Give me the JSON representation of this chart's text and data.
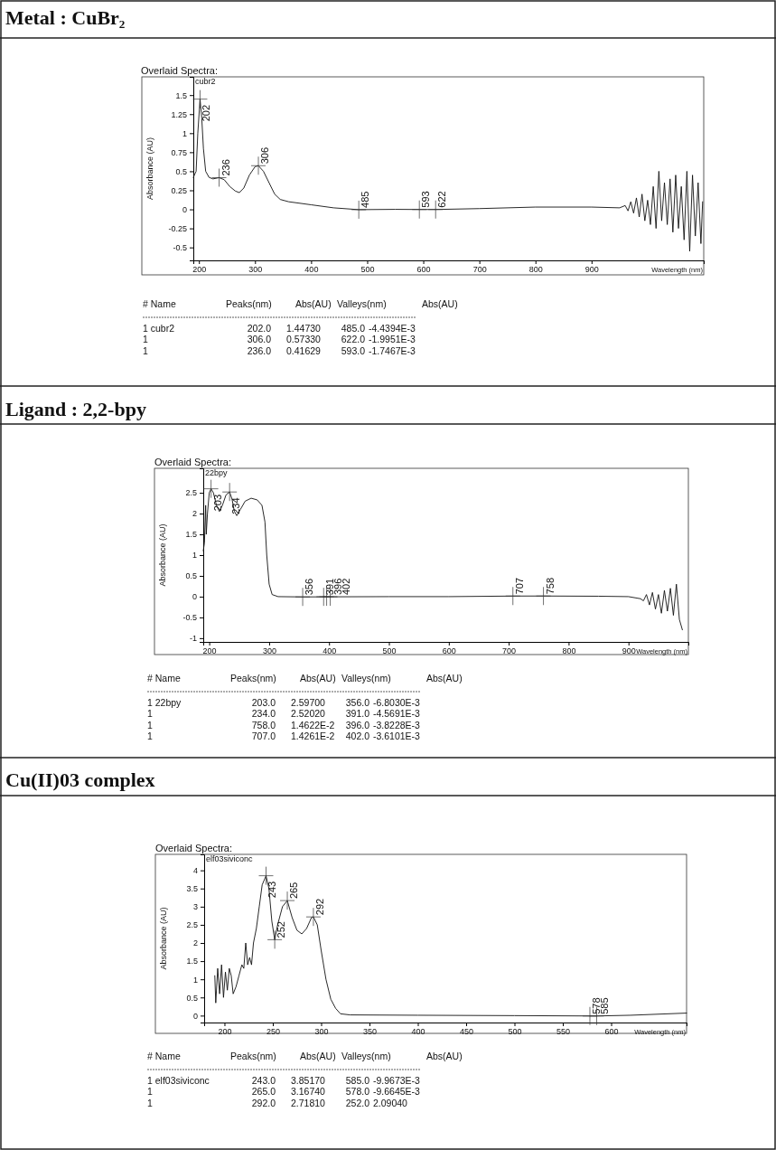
{
  "chart_data": [
    {
      "type": "line",
      "title": "Metal : CuBr₂",
      "subtitle": "Overlaid Spectra:",
      "xlabel": "Wavelength (nm)",
      "ylabel": "Absorbance (AU)",
      "legend": "top left",
      "grid": false,
      "xlim": [
        190,
        1100
      ],
      "ylim": [
        -0.67,
        1.74
      ],
      "xticks": [
        200,
        300,
        400,
        500,
        600,
        700,
        800,
        900
      ],
      "yticks": [
        -0.5,
        -0.25,
        0,
        0.25,
        0.5,
        0.75,
        1,
        1.25,
        1.5
      ],
      "series": [
        {
          "name": "cubr2",
          "color": "#111111",
          "x": [
            190,
            195,
            198,
            202,
            205,
            208,
            212,
            218,
            225,
            236,
            245,
            255,
            265,
            272,
            280,
            290,
            300,
            306,
            315,
            325,
            335,
            345,
            360,
            400,
            440,
            485,
            550,
            593,
            622,
            700,
            800,
            900,
            950,
            960,
            965,
            970,
            975,
            980,
            985,
            990,
            995,
            1000,
            1005,
            1010,
            1015,
            1020,
            1025,
            1030,
            1035,
            1040,
            1045,
            1050,
            1055,
            1060,
            1065,
            1070,
            1075,
            1080,
            1085,
            1090,
            1095,
            1098
          ],
          "values": [
            0.42,
            0.5,
            1.0,
            1.447,
            1.2,
            0.8,
            0.5,
            0.42,
            0.4,
            0.416,
            0.39,
            0.3,
            0.24,
            0.22,
            0.28,
            0.45,
            0.56,
            0.573,
            0.5,
            0.35,
            0.2,
            0.13,
            0.1,
            0.06,
            0.02,
            -0.004,
            0,
            -0.002,
            -0.002,
            0.01,
            0.03,
            0.03,
            0.02,
            0.05,
            -0.02,
            0.1,
            -0.05,
            0.15,
            -0.1,
            0.2,
            -0.15,
            0.12,
            -0.2,
            0.3,
            -0.25,
            0.5,
            -0.15,
            0.35,
            -0.2,
            0.4,
            -0.3,
            0.45,
            -0.25,
            0.3,
            -0.4,
            0.5,
            -0.55,
            0.45,
            -0.35,
            0.35,
            -0.45,
            0.1
          ]
        }
      ],
      "annotations": [
        {
          "text": "202",
          "x": 202,
          "y": 1.4473
        },
        {
          "text": "236",
          "x": 236,
          "y": 0.41629
        },
        {
          "text": "306",
          "x": 306,
          "y": 0.5733
        },
        {
          "text": "485",
          "x": 485,
          "y": -0.0044394
        },
        {
          "text": "593",
          "x": 593,
          "y": -0.0017467
        },
        {
          "text": "622",
          "x": 622,
          "y": -0.0019951
        },
        "# Name\tPeaks(nm)\tAbs(AU)\tValleys(nm)\tAbs(AU)",
        "1 cubr2\t202.0\t1.44730\t485.0\t-4.4394E-3",
        "1\t306.0\t0.57330\t622.0\t-1.9951E-3",
        "1\t236.0\t0.41629\t593.0\t-1.7467E-3"
      ]
    },
    {
      "type": "line",
      "title": "Ligand : 2,2-bpy",
      "subtitle": "Overlaid Spectra:",
      "xlabel": "Wavelength (nm)",
      "ylabel": "Absorbance (AU)",
      "legend": "top left",
      "grid": false,
      "xlim": [
        190,
        1000
      ],
      "ylim": [
        -1.09,
        3.09
      ],
      "xticks": [
        200,
        300,
        400,
        500,
        600,
        700,
        800,
        900
      ],
      "yticks": [
        -1,
        -0.5,
        0,
        0.5,
        1,
        1.5,
        2,
        2.5
      ],
      "series": [
        {
          "name": "22bpy",
          "color": "#111111",
          "x": [
            190,
            192,
            194,
            195,
            197,
            200,
            203,
            207,
            212,
            217,
            222,
            228,
            234,
            238,
            242,
            246,
            252,
            260,
            270,
            280,
            288,
            293,
            296,
            300,
            305,
            315,
            356,
            391,
            400,
            500,
            600,
            707,
            758,
            850,
            900,
            920,
            925,
            930,
            935,
            940,
            945,
            950,
            955,
            960,
            965,
            970,
            975,
            980,
            985,
            990
          ],
          "values": [
            1.1,
            1.3,
            2.2,
            1.5,
            2.0,
            2.5,
            2.597,
            2.5,
            2.2,
            2.05,
            2.2,
            2.45,
            2.5202,
            2.35,
            2.05,
            1.95,
            2.1,
            2.3,
            2.37,
            2.33,
            2.2,
            1.8,
            1.0,
            0.3,
            0.05,
            0,
            -0.0068,
            -0.0046,
            -0.004,
            0,
            0,
            0.014,
            0.015,
            0.01,
            0,
            -0.05,
            -0.1,
            0.05,
            -0.2,
            0.1,
            -0.3,
            0.05,
            -0.4,
            0.15,
            -0.35,
            0.2,
            -0.45,
            0.3,
            -0.55,
            -0.8
          ]
        }
      ],
      "annotations": [
        {
          "text": "203",
          "x": 203,
          "y": 2.597
        },
        {
          "text": "234",
          "x": 234,
          "y": 2.5202
        },
        {
          "text": "356",
          "x": 356,
          "y": -0.006803
        },
        {
          "text": "391",
          "x": 391,
          "y": -0.0045691
        },
        {
          "text": "396",
          "x": 396,
          "y": -0.0038228
        },
        {
          "text": "402",
          "x": 402,
          "y": -0.0036101
        },
        {
          "text": "707",
          "x": 707,
          "y": 0.014261
        },
        {
          "text": "758",
          "x": 758,
          "y": 0.014622
        },
        "# Name\tPeaks(nm)\tAbs(AU)\tValleys(nm)\tAbs(AU)",
        "1 22bpy\t203.0\t2.59700\t356.0\t-6.8030E-3",
        "1\t234.0\t2.52020\t391.0\t-4.5691E-3",
        "1\t758.0\t1.4622E-2\t396.0\t-3.8228E-3",
        "1\t707.0\t1.4261E-2\t402.0\t-3.6101E-3"
      ]
    },
    {
      "type": "line",
      "title": "Cu(II)03 complex",
      "subtitle": "Overlaid Spectra:",
      "xlabel": "Wavelength (nm)",
      "ylabel": "Absorbance (AU)",
      "legend": "top left",
      "grid": false,
      "xlim": [
        179,
        678
      ],
      "ylim": [
        -0.19,
        4.44
      ],
      "xticks": [
        200,
        250,
        300,
        350,
        400,
        450,
        500,
        550,
        600
      ],
      "yticks": [
        0,
        0.5,
        1,
        1.5,
        2,
        2.5,
        3,
        3.5,
        4
      ],
      "series": [
        {
          "name": "elf03siviconc",
          "color": "#111111",
          "x": [
            190,
            191,
            193,
            195,
            197,
            199,
            201,
            203,
            205,
            207,
            209,
            212,
            215,
            218,
            220,
            222,
            224,
            226,
            228,
            230,
            233,
            236,
            239,
            243,
            246,
            249,
            252,
            255,
            260,
            265,
            270,
            275,
            280,
            285,
            290,
            292,
            296,
            300,
            305,
            310,
            315,
            320,
            330,
            400,
            500,
            578,
            585,
            620,
            678
          ],
          "values": [
            1.1,
            0.35,
            1.3,
            0.6,
            1.4,
            0.5,
            1.2,
            0.7,
            1.3,
            1.1,
            0.6,
            0.8,
            1.1,
            1.4,
            1.3,
            2.0,
            1.4,
            1.6,
            1.4,
            2.0,
            2.4,
            3.0,
            3.6,
            3.8517,
            3.5,
            2.6,
            2.0904,
            2.5,
            3.0,
            3.1674,
            2.7,
            2.35,
            2.25,
            2.4,
            2.7,
            2.7181,
            2.5,
            1.8,
            1.0,
            0.45,
            0.2,
            0.05,
            0.02,
            0.01,
            0,
            -0.0097,
            -0.01,
            0.01,
            0.07
          ]
        }
      ],
      "annotations": [
        {
          "text": "243",
          "x": 243,
          "y": 3.8517
        },
        {
          "text": "252",
          "x": 252,
          "y": 2.0904
        },
        {
          "text": "265",
          "x": 265,
          "y": 3.1674
        },
        {
          "text": "292",
          "x": 292,
          "y": 2.7181
        },
        {
          "text": "578",
          "x": 578,
          "y": -0.0096645
        },
        {
          "text": "585",
          "x": 585,
          "y": -0.0099673
        },
        "# Name\tPeaks(nm)\tAbs(AU)\tValleys(nm)\tAbs(AU)",
        "1 elf03siviconc\t243.0\t3.85170\t585.0\t-9.9673E-3",
        "1\t265.0\t3.16740\t578.0\t-9.6645E-3",
        "1\t292.0\t2.71810\t252.0\t2.09040"
      ]
    }
  ]
}
